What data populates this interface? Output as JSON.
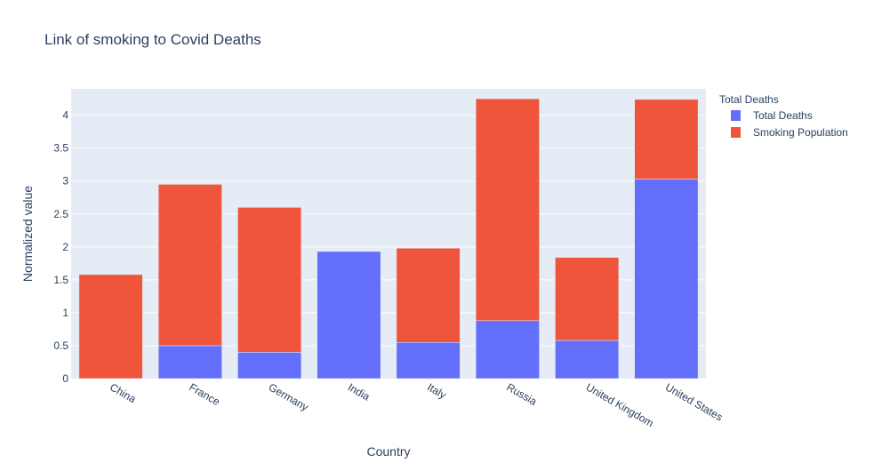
{
  "chart_data": {
    "type": "bar",
    "barmode": "stack",
    "title": "Link of smoking to Covid Deaths",
    "xlabel": "Country",
    "ylabel": "Normalized value",
    "categories": [
      "China",
      "France",
      "Germany",
      "India",
      "Italy",
      "Russia",
      "United Kingdom",
      "United States"
    ],
    "series": [
      {
        "name": "Total Deaths",
        "color": "#636efa",
        "values": [
          0.0,
          0.5,
          0.4,
          1.93,
          0.55,
          0.88,
          0.58,
          3.03
        ]
      },
      {
        "name": "Smoking Population",
        "color": "#ef553b",
        "values": [
          1.58,
          2.45,
          2.2,
          0.0,
          1.43,
          3.37,
          1.26,
          1.21
        ]
      }
    ],
    "ylim": [
      0,
      4.4
    ],
    "yticks": [
      0,
      0.5,
      1,
      1.5,
      2,
      2.5,
      3,
      3.5,
      4
    ],
    "ytick_labels": [
      "0",
      "0.5",
      "1",
      "1.5",
      "2",
      "2.5",
      "3",
      "3.5",
      "4"
    ],
    "legend": {
      "title": "Total Deaths",
      "position": "right"
    },
    "grid": true,
    "plot_background": "#e5ecf6"
  }
}
